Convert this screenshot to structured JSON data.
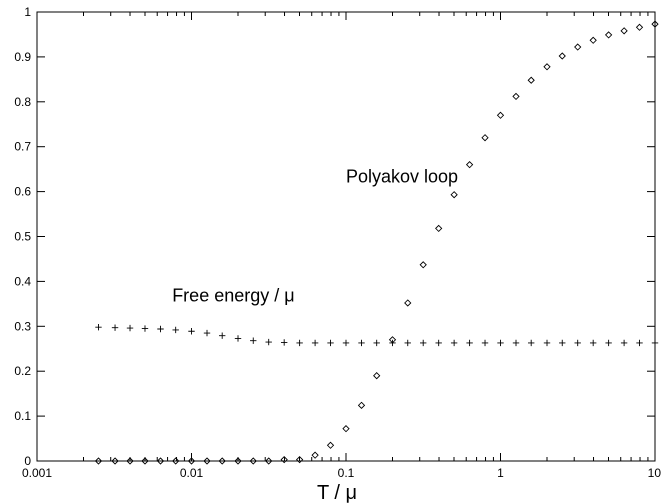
{
  "chart_data": {
    "type": "scatter",
    "title": "",
    "xlabel": "T / μ",
    "ylabel": "",
    "x_scale": "log",
    "xlim": [
      0.001,
      10
    ],
    "ylim": [
      0,
      1
    ],
    "grid": false,
    "x_ticks": [
      {
        "value": 0.001,
        "label": "0.001"
      },
      {
        "value": 0.01,
        "label": "0.01"
      },
      {
        "value": 0.1,
        "label": "0.1"
      },
      {
        "value": 1,
        "label": "1"
      },
      {
        "value": 10,
        "label": "10"
      }
    ],
    "y_ticks": [
      {
        "value": 0,
        "label": "0"
      },
      {
        "value": 0.1,
        "label": "0.1"
      },
      {
        "value": 0.2,
        "label": "0.2"
      },
      {
        "value": 0.3,
        "label": "0.3"
      },
      {
        "value": 0.4,
        "label": "0.4"
      },
      {
        "value": 0.5,
        "label": "0.5"
      },
      {
        "value": 0.6,
        "label": "0.6"
      },
      {
        "value": 0.7,
        "label": "0.7"
      },
      {
        "value": 0.8,
        "label": "0.8"
      },
      {
        "value": 0.9,
        "label": "0.9"
      },
      {
        "value": 1,
        "label": "1"
      }
    ],
    "annotations": [
      {
        "text": "Polyakov loop",
        "x": 0.1,
        "y": 0.62
      },
      {
        "text": "Free energy / μ",
        "x": 0.0075,
        "y": 0.355
      }
    ],
    "series": [
      {
        "marker": "diamond",
        "color": "#000000",
        "x": [
          0.0025,
          0.0032,
          0.004,
          0.005,
          0.0063,
          0.0079,
          0.01,
          0.0126,
          0.0158,
          0.02,
          0.0251,
          0.0316,
          0.0398,
          0.0501,
          0.0631,
          0.0794,
          0.1,
          0.126,
          0.158,
          0.2,
          0.251,
          0.316,
          0.398,
          0.501,
          0.631,
          0.794,
          1.0,
          1.26,
          1.58,
          2.0,
          2.51,
          3.16,
          3.98,
          5.01,
          6.31,
          7.94,
          10.0
        ],
        "y": [
          0.0,
          0.0,
          0.0,
          0.0,
          0.0,
          0.0,
          0.0,
          0.0,
          0.0,
          0.0,
          0.0,
          0.0,
          0.003,
          0.003,
          0.013,
          0.035,
          0.072,
          0.124,
          0.19,
          0.27,
          0.352,
          0.437,
          0.518,
          0.593,
          0.66,
          0.72,
          0.77,
          0.812,
          0.848,
          0.878,
          0.902,
          0.922,
          0.937,
          0.949,
          0.958,
          0.966,
          0.973
        ]
      },
      {
        "marker": "plus",
        "color": "#000000",
        "x": [
          0.0025,
          0.0032,
          0.004,
          0.005,
          0.0063,
          0.0079,
          0.01,
          0.0126,
          0.0158,
          0.02,
          0.0251,
          0.0316,
          0.0398,
          0.0501,
          0.0631,
          0.0794,
          0.1,
          0.126,
          0.158,
          0.2,
          0.251,
          0.316,
          0.398,
          0.501,
          0.631,
          0.794,
          1.0,
          1.26,
          1.58,
          2.0,
          2.51,
          3.16,
          3.98,
          5.01,
          6.31,
          7.94,
          10.0
        ],
        "y": [
          0.298,
          0.297,
          0.296,
          0.295,
          0.294,
          0.292,
          0.289,
          0.285,
          0.279,
          0.273,
          0.268,
          0.265,
          0.264,
          0.263,
          0.263,
          0.263,
          0.263,
          0.263,
          0.263,
          0.263,
          0.263,
          0.263,
          0.263,
          0.263,
          0.263,
          0.263,
          0.263,
          0.263,
          0.263,
          0.263,
          0.263,
          0.263,
          0.263,
          0.263,
          0.263,
          0.263,
          0.263
        ]
      }
    ]
  }
}
